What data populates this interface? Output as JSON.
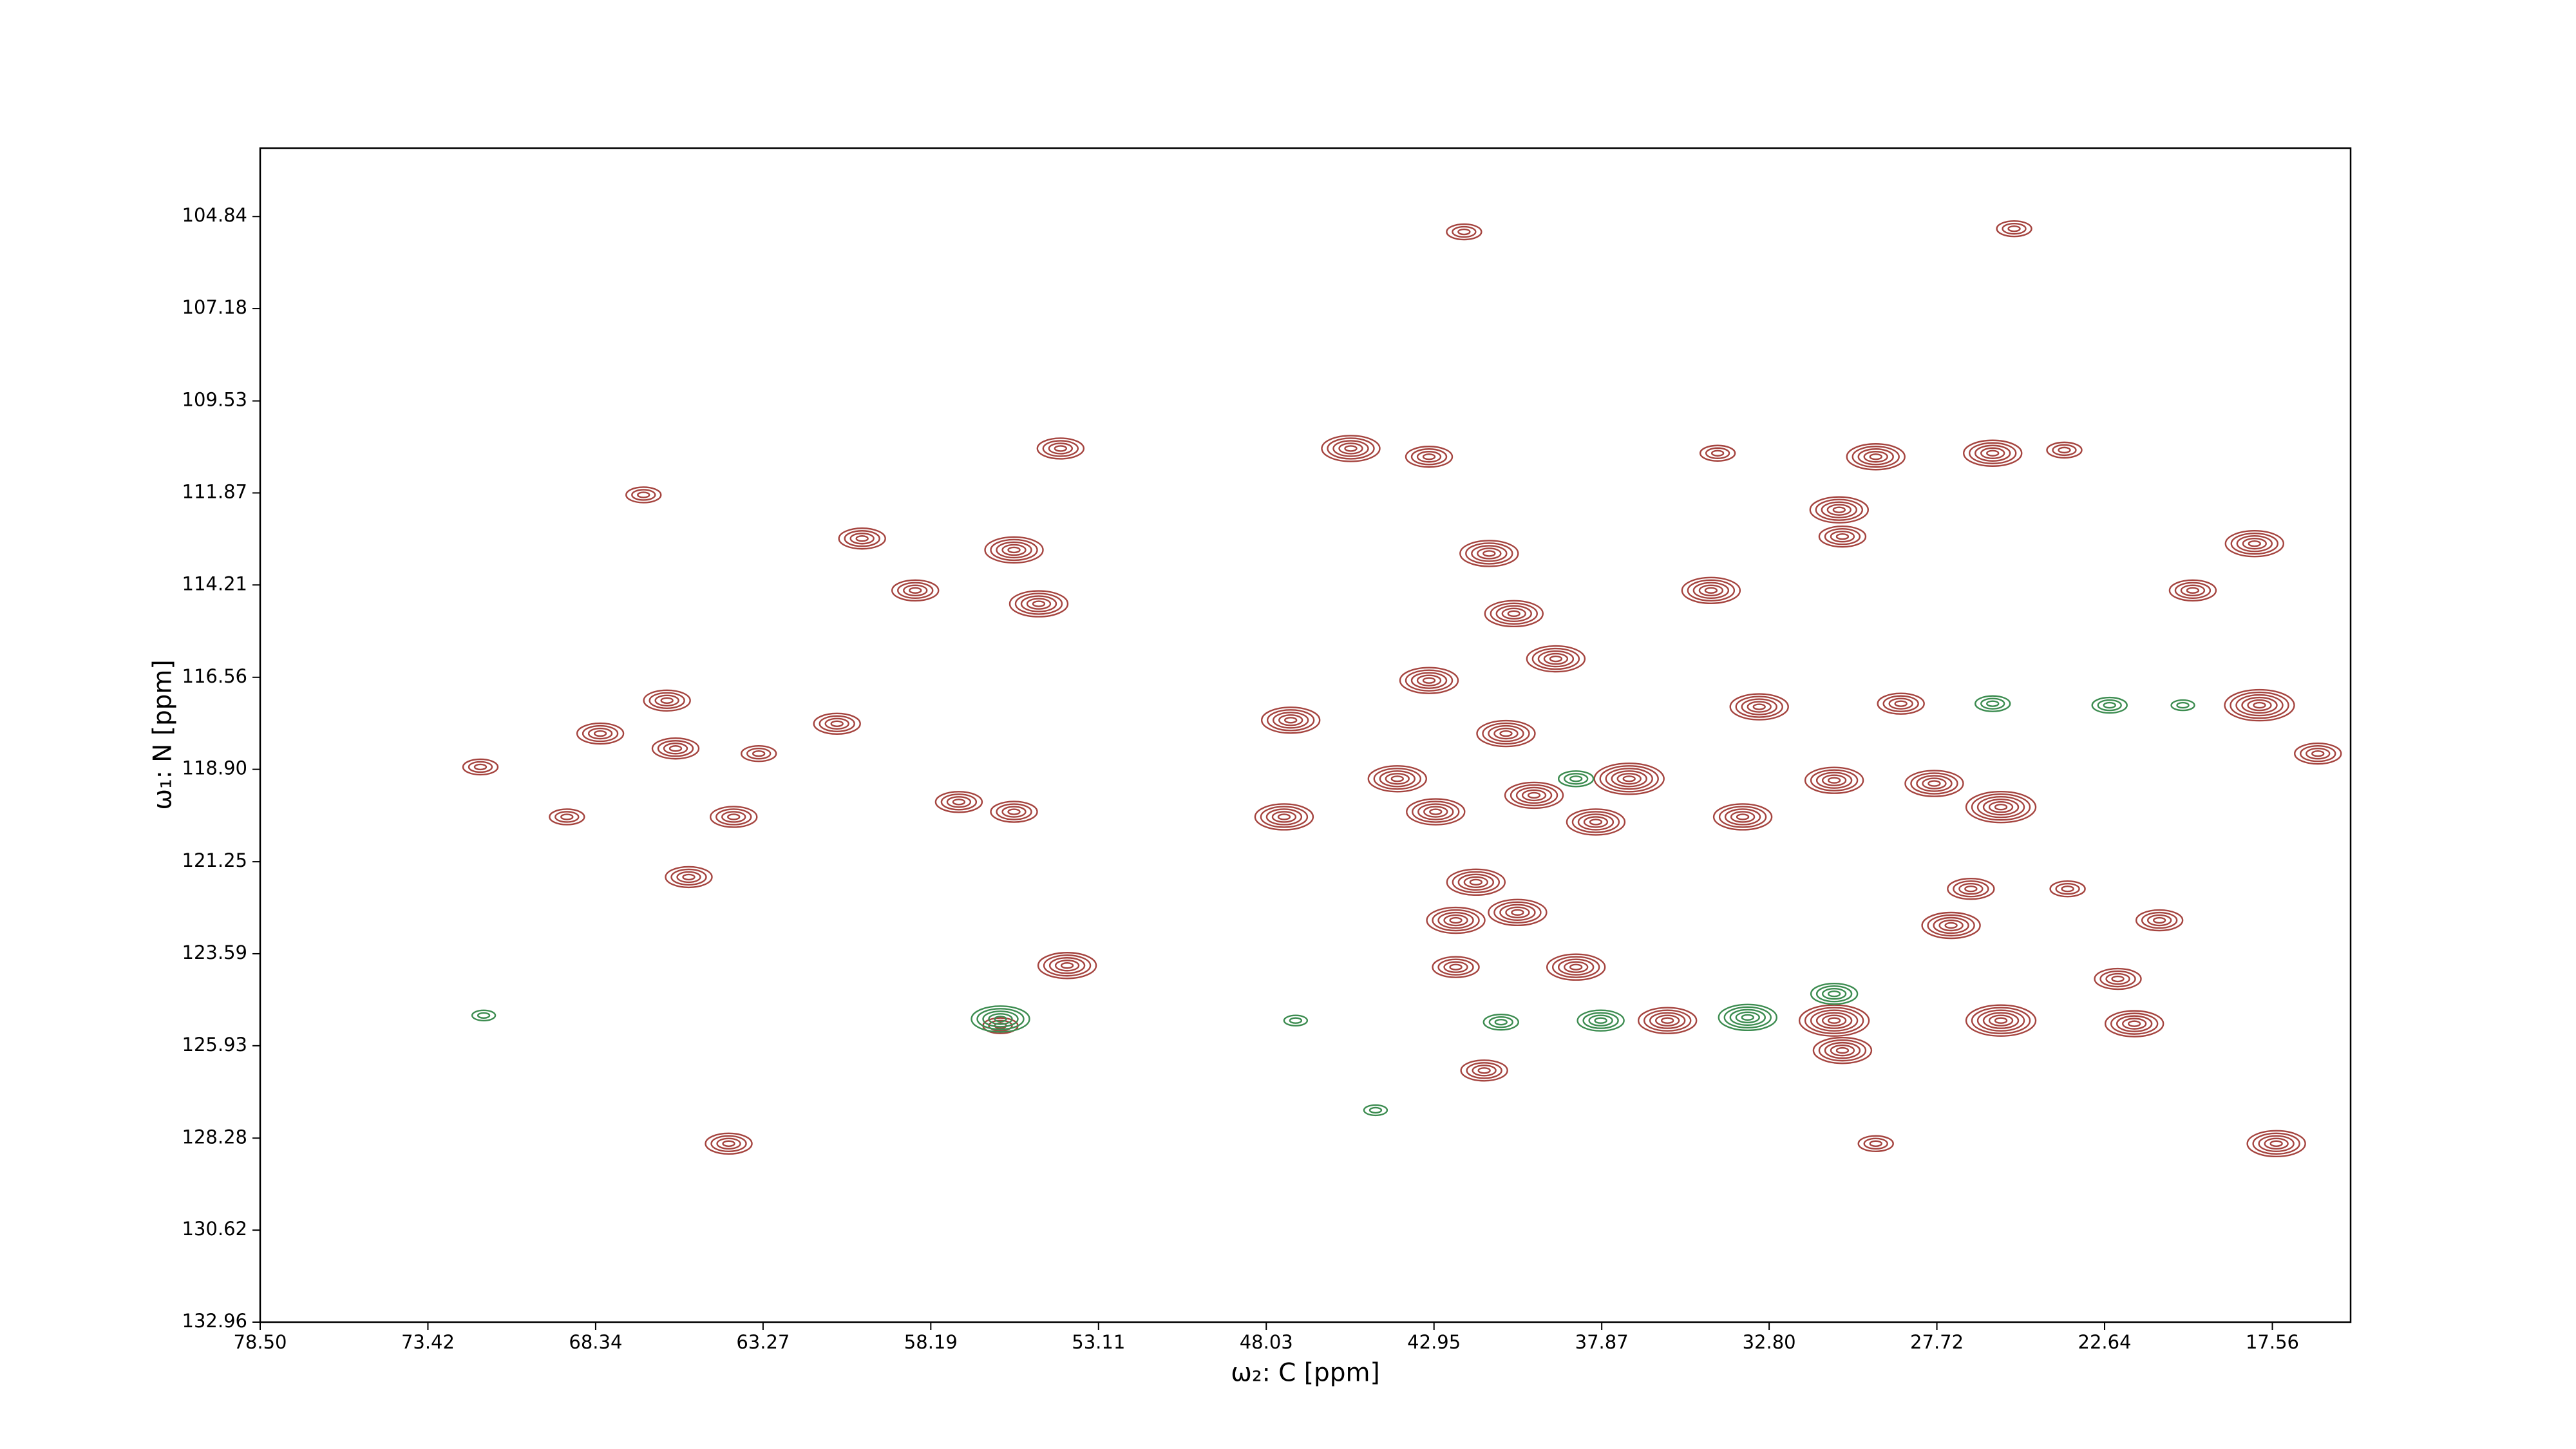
{
  "chart_data": {
    "type": "contour",
    "x_label": "ω₂: C [ppm]",
    "y_label": "ω₁: N [ppm]",
    "xlim": [
      78.5,
      15.19
    ],
    "ylim": [
      132.96,
      103.1
    ],
    "xticks": [
      {
        "value": 78.5,
        "label": "78.50"
      },
      73.42,
      68.34,
      63.27,
      58.19,
      53.11,
      48.03,
      42.95,
      37.87,
      {
        "value": 32.8,
        "label": "32.80"
      },
      27.72,
      22.64,
      17.56
    ],
    "yticks": [
      104.84,
      107.18,
      109.53,
      111.87,
      114.21,
      116.56,
      {
        "value": 118.9,
        "label": "118.90"
      },
      121.25,
      123.59,
      125.93,
      128.28,
      130.62,
      132.96
    ],
    "series": [
      {
        "color": "#a5443f",
        "x": [
          42.04,
          25.38,
          54.26,
          45.47,
          43.1,
          29.57,
          26.03,
          23.86,
          34.36,
          66.89,
          30.68,
          30.58,
          60.27,
          55.67,
          41.28,
          18.1,
          58.66,
          54.92,
          34.56,
          19.97,
          40.53,
          39.26,
          43.1,
          66.18,
          47.29,
          40.77,
          33.1,
          28.81,
          17.95,
          61.03,
          68.2,
          65.92,
          63.4,
          71.83,
          16.18,
          44.06,
          37.04,
          30.83,
          27.8,
          39.92,
          42.9,
          25.78,
          47.49,
          33.6,
          38.05,
          55.67,
          57.34,
          69.21,
          64.16,
          65.52,
          41.68,
          26.69,
          23.76,
          40.42,
          42.29,
          27.29,
          20.98,
          54.06,
          38.65,
          42.29,
          22.24,
          30.83,
          25.78,
          21.74,
          35.88,
          30.58,
          41.43,
          64.31,
          17.44,
          29.57,
          56.08
        ],
        "y": [
          105.23,
          105.15,
          110.74,
          110.74,
          110.95,
          110.95,
          110.86,
          110.78,
          110.86,
          111.92,
          112.3,
          112.98,
          113.03,
          113.32,
          113.41,
          113.16,
          114.35,
          114.69,
          114.35,
          114.35,
          114.94,
          116.09,
          116.64,
          117.15,
          117.65,
          117.99,
          117.31,
          117.23,
          117.27,
          117.74,
          117.99,
          118.37,
          118.5,
          118.84,
          118.5,
          119.14,
          119.14,
          119.18,
          119.26,
          119.56,
          119.98,
          119.86,
          120.11,
          120.11,
          120.24,
          119.98,
          119.73,
          120.11,
          120.11,
          121.64,
          121.77,
          121.94,
          121.94,
          122.54,
          122.74,
          122.87,
          122.74,
          123.89,
          123.93,
          123.93,
          124.23,
          125.29,
          125.29,
          125.37,
          125.29,
          126.05,
          126.56,
          128.42,
          128.42,
          128.42,
          125.42
        ],
        "levels": [
          3,
          3,
          4,
          5,
          4,
          5,
          5,
          3,
          3,
          3,
          5,
          4,
          4,
          5,
          5,
          5,
          4,
          5,
          5,
          4,
          5,
          5,
          5,
          4,
          5,
          5,
          5,
          4,
          6,
          4,
          4,
          4,
          3,
          3,
          4,
          5,
          6,
          5,
          5,
          5,
          5,
          6,
          5,
          5,
          5,
          4,
          4,
          3,
          4,
          4,
          5,
          4,
          3,
          5,
          5,
          5,
          4,
          5,
          5,
          4,
          4,
          6,
          6,
          5,
          5,
          5,
          4,
          4,
          5,
          3,
          3
        ]
      },
      {
        "color": "#3c8c50",
        "x": [
          56.08,
          33.45,
          37.9,
          40.92,
          30.83,
          38.65,
          22.49,
          26.03,
          20.27,
          71.73,
          47.14,
          44.72
        ],
        "y": [
          125.25,
          125.21,
          125.29,
          125.33,
          124.61,
          119.14,
          117.27,
          117.23,
          117.27,
          125.16,
          125.29,
          127.57
        ],
        "levels": [
          5,
          5,
          4,
          3,
          4,
          3,
          3,
          3,
          2,
          2,
          2,
          2
        ]
      }
    ]
  }
}
